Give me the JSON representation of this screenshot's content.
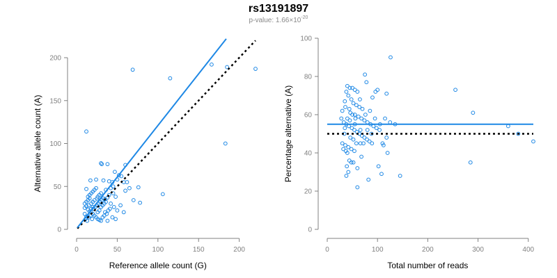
{
  "title": "rs13191897",
  "subtitle": {
    "prefix": "p-value: 1.66×10",
    "exponent": "-20"
  },
  "colors": {
    "points": "#1E88E5",
    "fit_line": "#1E88E5",
    "reference_line": "#000000",
    "axis": "#808080"
  },
  "chart_data": [
    {
      "type": "scatter",
      "xlabel": "Reference allele count (G)",
      "ylabel": "Alternative allele count (A)",
      "xlim": [
        0,
        220
      ],
      "ylim": [
        0,
        200
      ],
      "xticks": [
        0,
        50,
        100,
        150,
        200
      ],
      "yticks": [
        0,
        50,
        100,
        150,
        200
      ],
      "fit_line": {
        "x": [
          1,
          184
        ],
        "y": [
          2,
          222
        ]
      },
      "reference_line": {
        "x": [
          1,
          220
        ],
        "y": [
          1,
          220
        ]
      },
      "points": [
        [
          12,
          114
        ],
        [
          69,
          186
        ],
        [
          115,
          176
        ],
        [
          166,
          192
        ],
        [
          185,
          189
        ],
        [
          220,
          187
        ],
        [
          183,
          100
        ],
        [
          106,
          41
        ],
        [
          24,
          58
        ],
        [
          17,
          57
        ],
        [
          12,
          47
        ],
        [
          60,
          75
        ],
        [
          30,
          77
        ],
        [
          31,
          76
        ],
        [
          38,
          76
        ],
        [
          47,
          67
        ],
        [
          33,
          57
        ],
        [
          40,
          56
        ],
        [
          44,
          55
        ],
        [
          50,
          58
        ],
        [
          52,
          63
        ],
        [
          55,
          62
        ],
        [
          58,
          55
        ],
        [
          62,
          55
        ],
        [
          76,
          49
        ],
        [
          65,
          48
        ],
        [
          60,
          45
        ],
        [
          45,
          50
        ],
        [
          42,
          48
        ],
        [
          36,
          46
        ],
        [
          70,
          34
        ],
        [
          78,
          31
        ],
        [
          48,
          38
        ],
        [
          45,
          42
        ],
        [
          40,
          40
        ],
        [
          38,
          37
        ],
        [
          35,
          35
        ],
        [
          30,
          42
        ],
        [
          28,
          40
        ],
        [
          26,
          38
        ],
        [
          25,
          36
        ],
        [
          22,
          34
        ],
        [
          20,
          32
        ],
        [
          18,
          30
        ],
        [
          15,
          28
        ],
        [
          12,
          27
        ],
        [
          10,
          25
        ],
        [
          14,
          23
        ],
        [
          16,
          21
        ],
        [
          18,
          20
        ],
        [
          20,
          18
        ],
        [
          22,
          16
        ],
        [
          24,
          14
        ],
        [
          26,
          12
        ],
        [
          28,
          11
        ],
        [
          30,
          10
        ],
        [
          12,
          15
        ],
        [
          10,
          18
        ],
        [
          11,
          12
        ],
        [
          13,
          10
        ],
        [
          15,
          14
        ],
        [
          17,
          16
        ],
        [
          19,
          12
        ],
        [
          21,
          24
        ],
        [
          23,
          26
        ],
        [
          25,
          28
        ],
        [
          27,
          30
        ],
        [
          29,
          32
        ],
        [
          31,
          34
        ],
        [
          33,
          36
        ],
        [
          35,
          20
        ],
        [
          37,
          18
        ],
        [
          39,
          22
        ],
        [
          41,
          24
        ],
        [
          34,
          16
        ],
        [
          32,
          14
        ],
        [
          20,
          44
        ],
        [
          18,
          42
        ],
        [
          16,
          40
        ],
        [
          14,
          38
        ],
        [
          22,
          46
        ],
        [
          24,
          48
        ],
        [
          26,
          20
        ],
        [
          28,
          22
        ],
        [
          30,
          26
        ],
        [
          32,
          28
        ],
        [
          34,
          30
        ],
        [
          36,
          32
        ],
        [
          10,
          30
        ],
        [
          12,
          32
        ],
        [
          14,
          34
        ],
        [
          16,
          36
        ],
        [
          18,
          24
        ],
        [
          20,
          26
        ],
        [
          58,
          20
        ],
        [
          48,
          12
        ],
        [
          42,
          30
        ],
        [
          46,
          26
        ],
        [
          50,
          22
        ],
        [
          54,
          28
        ],
        [
          38,
          10
        ],
        [
          44,
          14
        ]
      ]
    },
    {
      "type": "scatter",
      "xlabel": "Total number of reads",
      "ylabel": "Percentage alternative (A)",
      "xlim": [
        0,
        410
      ],
      "ylim": [
        0,
        100
      ],
      "xticks": [
        0,
        100,
        200,
        300,
        400
      ],
      "yticks": [
        0,
        20,
        40,
        60,
        80,
        100
      ],
      "fit_line": {
        "x": [
          0,
          410
        ],
        "y": [
          55,
          55
        ]
      },
      "reference_line": {
        "x": [
          0,
          410
        ],
        "y": [
          50,
          50
        ]
      },
      "points": [
        [
          126,
          90
        ],
        [
          75,
          81
        ],
        [
          78,
          77
        ],
        [
          255,
          73
        ],
        [
          100,
          73
        ],
        [
          96,
          72
        ],
        [
          90,
          69
        ],
        [
          118,
          71
        ],
        [
          40,
          75
        ],
        [
          45,
          74
        ],
        [
          50,
          74
        ],
        [
          55,
          73
        ],
        [
          38,
          72
        ],
        [
          60,
          72
        ],
        [
          42,
          70
        ],
        [
          48,
          68
        ],
        [
          35,
          67
        ],
        [
          52,
          66
        ],
        [
          58,
          65
        ],
        [
          64,
          64
        ],
        [
          70,
          63
        ],
        [
          30,
          62
        ],
        [
          46,
          61
        ],
        [
          55,
          60
        ],
        [
          62,
          59
        ],
        [
          68,
          58
        ],
        [
          74,
          57
        ],
        [
          80,
          56
        ],
        [
          86,
          55
        ],
        [
          92,
          54
        ],
        [
          98,
          53
        ],
        [
          104,
          52
        ],
        [
          28,
          58
        ],
        [
          33,
          56
        ],
        [
          38,
          55
        ],
        [
          43,
          54
        ],
        [
          49,
          53
        ],
        [
          54,
          52
        ],
        [
          59,
          51
        ],
        [
          64,
          50
        ],
        [
          69,
          49
        ],
        [
          74,
          48
        ],
        [
          79,
          47
        ],
        [
          84,
          46
        ],
        [
          89,
          45
        ],
        [
          110,
          45
        ],
        [
          112,
          44
        ],
        [
          72,
          45
        ],
        [
          30,
          45
        ],
        [
          36,
          44
        ],
        [
          42,
          43
        ],
        [
          48,
          42
        ],
        [
          54,
          41
        ],
        [
          40,
          40
        ],
        [
          37,
          41
        ],
        [
          32,
          42
        ],
        [
          44,
          36
        ],
        [
          48,
          35
        ],
        [
          52,
          35
        ],
        [
          39,
          33
        ],
        [
          42,
          30
        ],
        [
          38,
          28
        ],
        [
          60,
          32
        ],
        [
          68,
          38
        ],
        [
          82,
          26
        ],
        [
          102,
          33
        ],
        [
          108,
          29
        ],
        [
          145,
          28
        ],
        [
          120,
          40
        ],
        [
          118,
          48
        ],
        [
          60,
          22
        ],
        [
          115,
          58
        ],
        [
          125,
          56
        ],
        [
          135,
          55
        ],
        [
          290,
          61
        ],
        [
          285,
          35
        ],
        [
          360,
          54
        ],
        [
          380,
          50
        ],
        [
          410,
          46
        ],
        [
          65,
          68
        ],
        [
          50,
          60
        ],
        [
          56,
          58
        ],
        [
          34,
          50
        ],
        [
          46,
          48
        ],
        [
          52,
          47
        ],
        [
          58,
          45
        ],
        [
          35,
          53
        ],
        [
          45,
          57
        ],
        [
          55,
          55
        ],
        [
          66,
          52
        ],
        [
          76,
          60
        ],
        [
          85,
          62
        ],
        [
          95,
          58
        ],
        [
          105,
          55
        ],
        [
          88,
          50
        ],
        [
          80,
          52
        ],
        [
          66,
          45
        ],
        [
          44,
          63
        ],
        [
          36,
          64
        ],
        [
          40,
          58
        ]
      ]
    }
  ]
}
